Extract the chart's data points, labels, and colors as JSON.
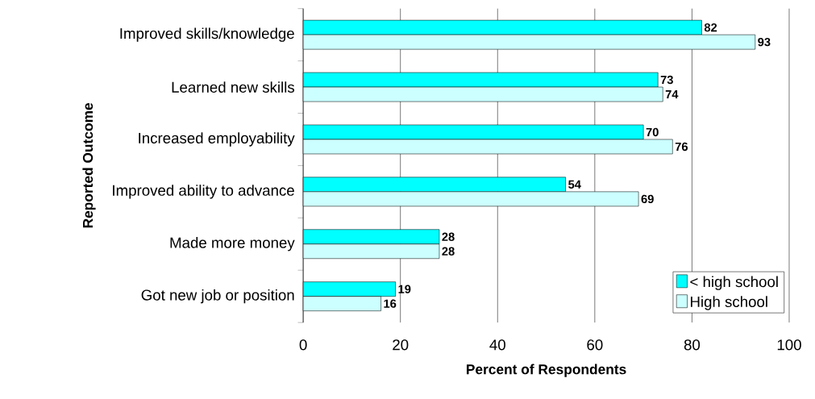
{
  "chart_data": {
    "type": "bar",
    "orientation": "horizontal",
    "xlabel": "Percent of Respondents",
    "ylabel": "Reported Outcome",
    "categories": [
      "Improved skills/knowledge",
      "Learned new skills",
      "Increased employability",
      "Improved ability to advance",
      "Made more money",
      "Got new job or position"
    ],
    "series": [
      {
        "name": "< high school",
        "color": "#00ffff",
        "values": [
          82,
          73,
          70,
          54,
          28,
          19
        ]
      },
      {
        "name": "High school",
        "color": "#ccffff",
        "values": [
          93,
          74,
          76,
          69,
          28,
          16
        ]
      }
    ],
    "xlim": [
      0,
      100
    ],
    "xticks": [
      0,
      20,
      40,
      60,
      80,
      100
    ],
    "grid": "x",
    "legend": "bottom right",
    "data_labels": true
  }
}
